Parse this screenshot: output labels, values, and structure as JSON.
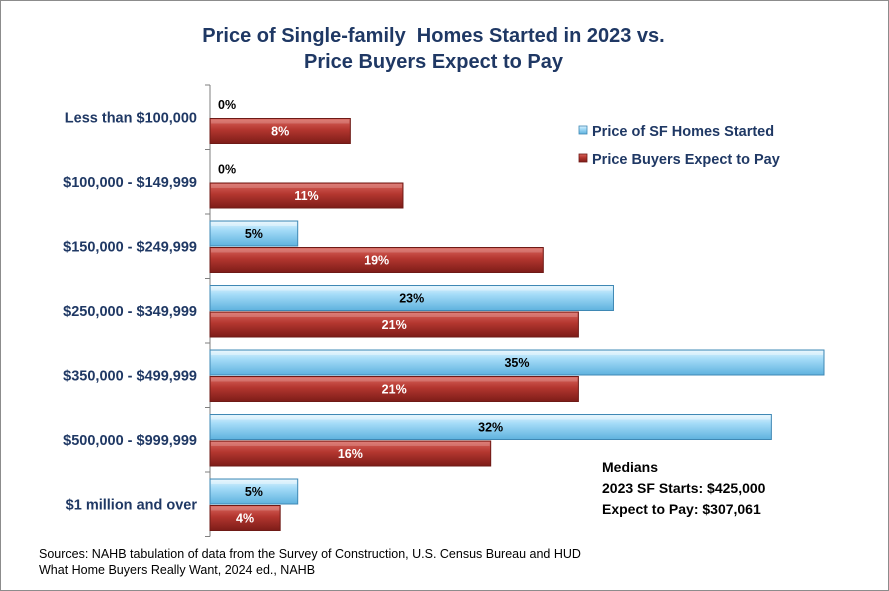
{
  "title": {
    "line1": "Price of Single-family  Homes Started in 2023 vs.",
    "line2": "Price Buyers Expect to Pay"
  },
  "chart_data": {
    "type": "bar",
    "orientation": "horizontal",
    "categories": [
      "Less than $100,000",
      "$100,000 - $149,999",
      "$150,000 - $249,999",
      "$250,000 - $349,999",
      "$350,000 - $499,999",
      "$500,000 - $999,999",
      "$1 million and over"
    ],
    "series": [
      {
        "name": "Price of SF Homes Started",
        "values": [
          0,
          0,
          5,
          23,
          35,
          32,
          5
        ],
        "labels": [
          "0%",
          "0%",
          "5%",
          "23%",
          "35%",
          "32%",
          "5%"
        ],
        "color": "#8fd3f4"
      },
      {
        "name": "Price Buyers Expect to Pay",
        "values": [
          8,
          11,
          19,
          21,
          21,
          16,
          4
        ],
        "labels": [
          "8%",
          "11%",
          "19%",
          "21%",
          "21%",
          "16%",
          "4%"
        ],
        "color": "#b83b35"
      }
    ],
    "xlim": [
      0,
      35
    ],
    "grid": false,
    "legend_position": "top-right"
  },
  "medians": {
    "heading": "Medians",
    "line1": "2023 SF Starts: $425,000",
    "line2": "Expect to Pay: $307,061"
  },
  "sources": {
    "line1": "Sources: NAHB tabulation of data from the Survey of Construction, U.S. Census Bureau and HUD",
    "line2": "What Home Buyers Really Want, 2024 ed., NAHB"
  }
}
